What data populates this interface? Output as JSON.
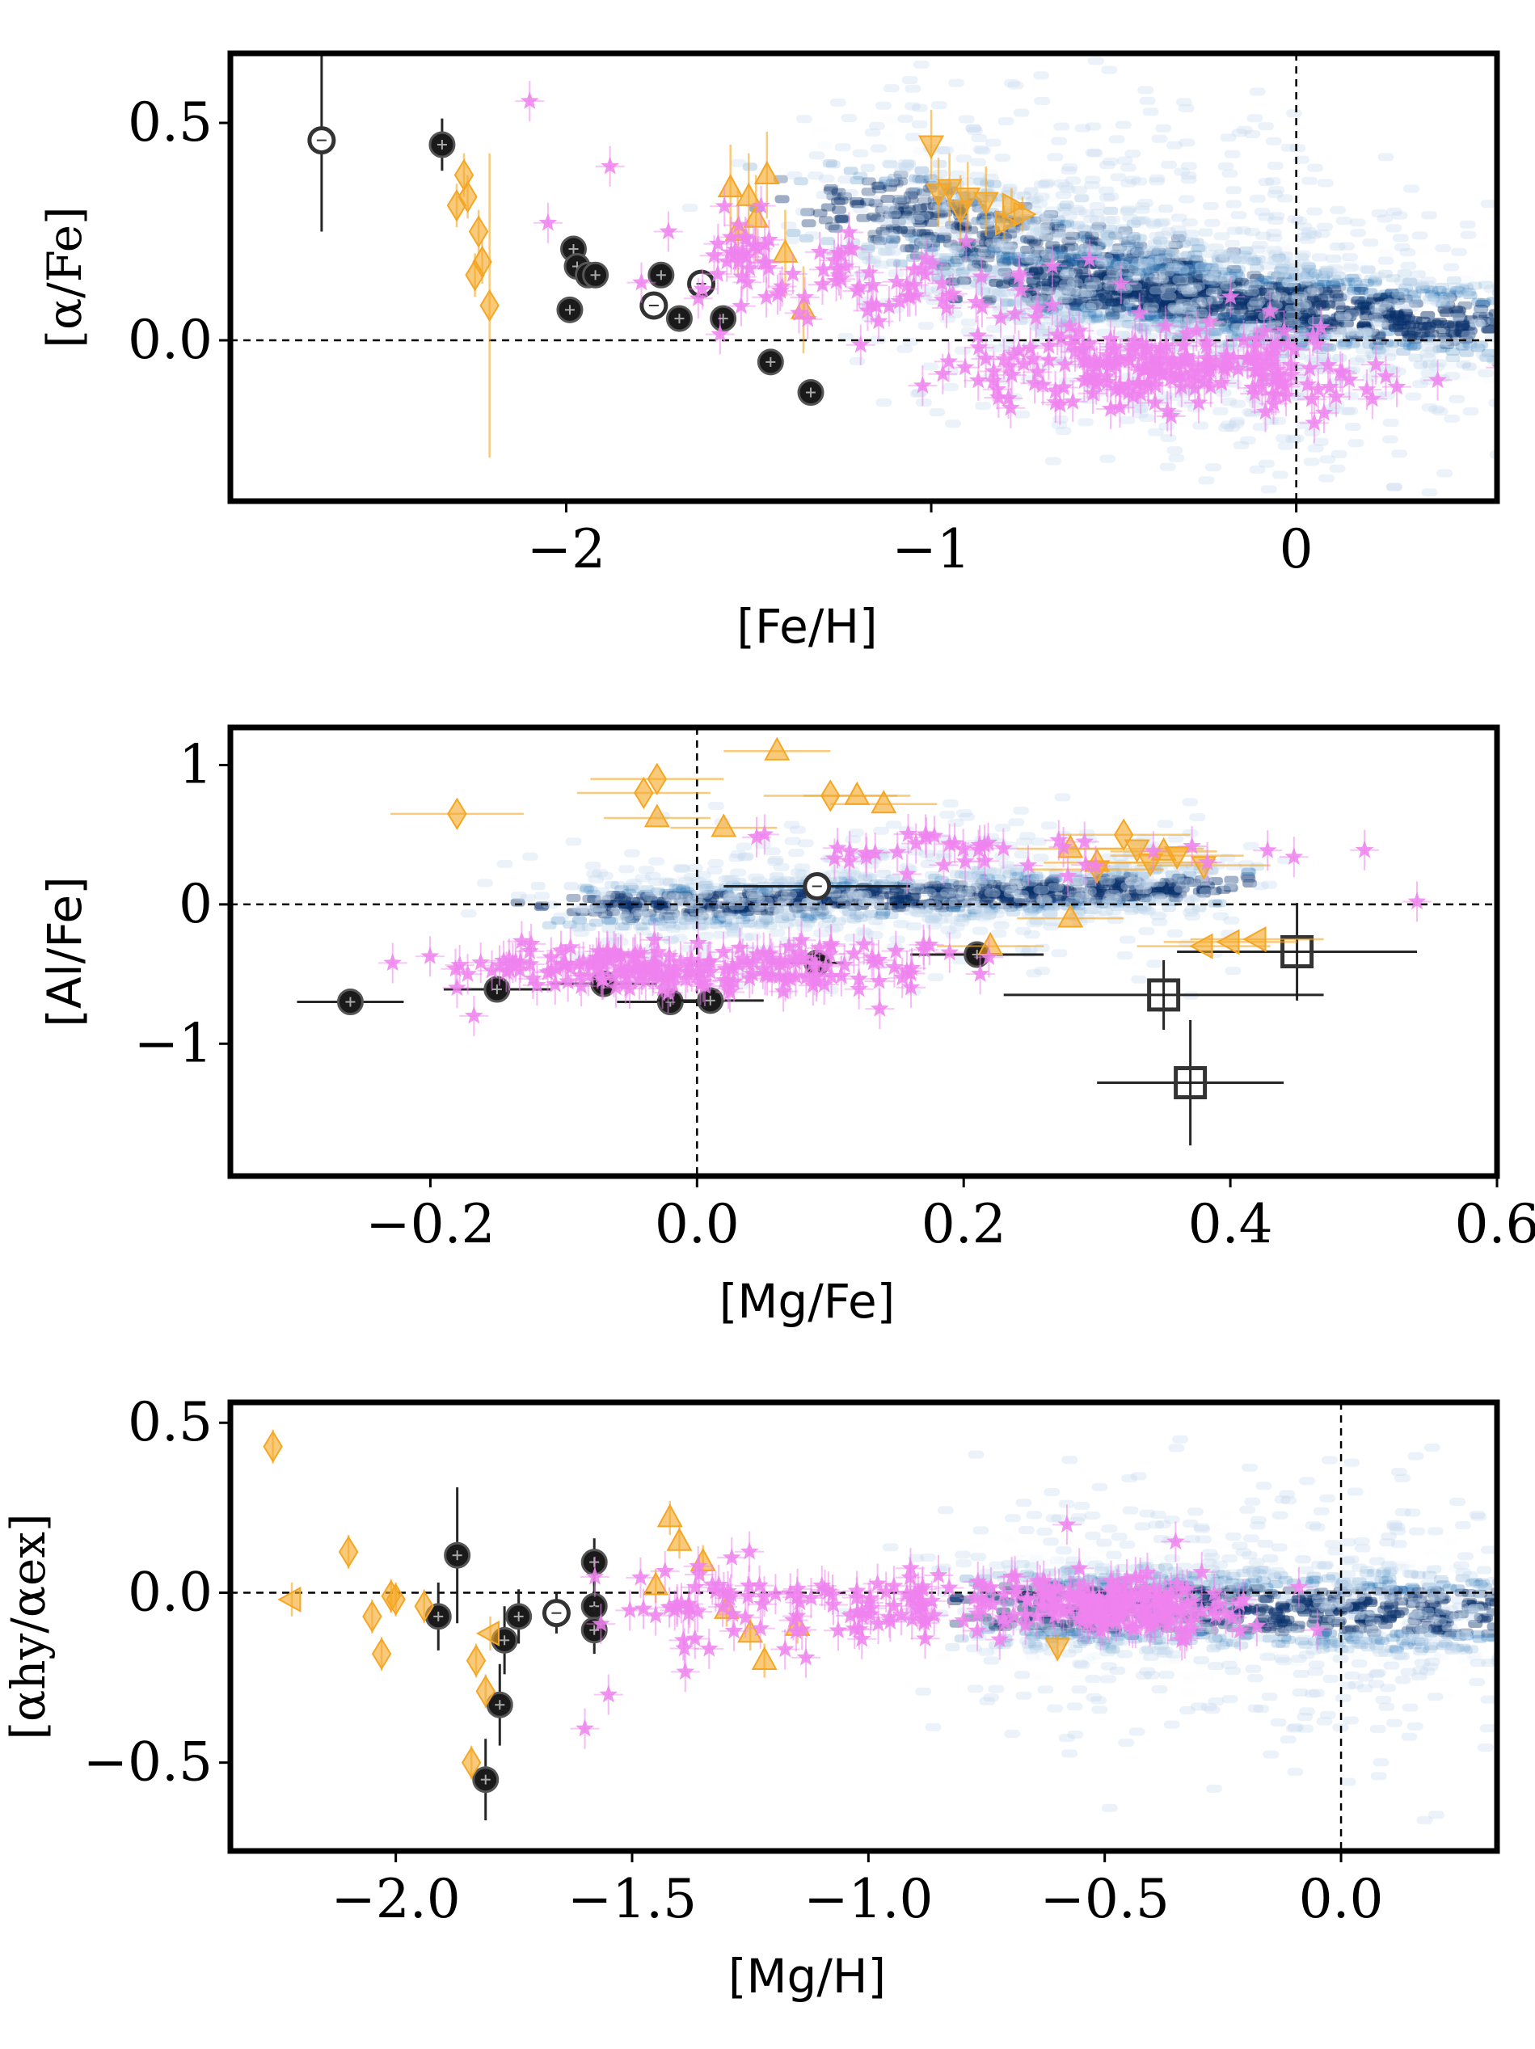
{
  "colors": {
    "black_points": "#1a1a1a",
    "orange_points": "#f5a623",
    "violet_points": "#ee82ee",
    "density_dark": "#08306b",
    "density_mid": "#2171b5",
    "density_light": "#c6dbef"
  },
  "chart_data": [
    {
      "type": "scatter",
      "title": "",
      "xlabel": "[Fe/H]",
      "ylabel": "[α/Fe]",
      "xlim": [
        -2.92,
        0.55
      ],
      "ylim": [
        -0.37,
        0.66
      ],
      "xticks": [
        -2,
        -1,
        0
      ],
      "xtick_labels": [
        "−2",
        "−1",
        "0"
      ],
      "yticks": [
        0.0,
        0.5
      ],
      "ytick_labels": [
        "0.0",
        "0.5"
      ],
      "ref_lines": {
        "h": 0.0,
        "v": 0.0
      },
      "density_bands": [
        {
          "name": "thick disc",
          "x0": -1.2,
          "x1": 0.05,
          "y0": 0.32,
          "y1": 0.05,
          "w": 0.09,
          "strength": 0.8
        },
        {
          "name": "thin disc",
          "x0": -0.75,
          "x1": 0.52,
          "y0": 0.14,
          "y1": 0.03,
          "w": 0.07,
          "strength": 1.0
        }
      ],
      "series": [
        {
          "name": "black filled",
          "marker": "circle",
          "x": [
            -2.34,
            -1.98,
            -1.97,
            -1.94,
            -1.92,
            -1.99,
            -1.74,
            -1.69,
            -1.57,
            -1.44,
            -1.33
          ],
          "y": [
            0.45,
            0.21,
            0.17,
            0.15,
            0.15,
            0.07,
            0.15,
            0.05,
            0.05,
            -0.05,
            -0.12
          ],
          "yerr": [
            0.06,
            0.03,
            0.03,
            0.03,
            0.03,
            0.03,
            0.03,
            0.03,
            0.03,
            0.03,
            0.03
          ]
        },
        {
          "name": "black open",
          "marker": "open-circle",
          "x": [
            -2.67,
            -1.76,
            -1.63
          ],
          "y": [
            0.46,
            0.08,
            0.13
          ],
          "yerr": [
            0.21,
            0.02,
            0.02
          ]
        },
        {
          "name": "orange diamonds",
          "marker": "diamond",
          "x": [
            -2.28,
            -2.27,
            -2.3,
            -2.24,
            -2.23,
            -2.25,
            -2.21
          ],
          "y": [
            0.38,
            0.33,
            0.31,
            0.25,
            0.18,
            0.15,
            0.08
          ],
          "yerr": [
            0.05,
            0.05,
            0.05,
            0.05,
            0.05,
            0.05,
            0.35
          ]
        },
        {
          "name": "orange triangles up",
          "marker": "triangle-up",
          "x": [
            -1.55,
            -1.5,
            -1.48,
            -1.45,
            -1.53,
            -1.4,
            -1.35
          ],
          "y": [
            0.35,
            0.33,
            0.28,
            0.38,
            0.25,
            0.2,
            0.07
          ],
          "yerr": [
            0.1,
            0.1,
            0.1,
            0.1,
            0.1,
            0.1,
            0.1
          ]
        },
        {
          "name": "orange triangles down",
          "marker": "triangle-down",
          "x": [
            -1.0,
            -0.95,
            -0.9,
            -0.92,
            -0.85,
            -0.98
          ],
          "y": [
            0.45,
            0.35,
            0.33,
            0.3,
            0.32,
            0.34
          ],
          "yerr": [
            0.08,
            0.08,
            0.08,
            0.08,
            0.08,
            0.08
          ]
        },
        {
          "name": "orange triangles right",
          "marker": "triangle-right",
          "x": [
            -0.78,
            -0.75,
            -0.8
          ],
          "y": [
            0.31,
            0.29,
            0.27
          ],
          "yerr": [
            0.04,
            0.04,
            0.04
          ]
        },
        {
          "name": "violet stars",
          "marker": "star",
          "cloud": true,
          "clusters": [
            {
              "cx": -0.35,
              "cy": -0.06,
              "sx": 0.28,
              "sy": 0.05,
              "n": 220
            },
            {
              "cx": -1.15,
              "cy": 0.13,
              "sx": 0.22,
              "sy": 0.05,
              "n": 70
            },
            {
              "cx": -1.55,
              "cy": 0.2,
              "sx": 0.06,
              "sy": 0.05,
              "n": 25
            }
          ],
          "x": [
            -2.1,
            -1.88,
            -2.05,
            -1.72,
            -0.48,
            -0.18
          ],
          "y": [
            0.55,
            0.4,
            0.27,
            0.25,
            0.13,
            0.1
          ]
        }
      ]
    },
    {
      "type": "scatter",
      "title": "",
      "xlabel": "[Mg/Fe]",
      "ylabel": "[Al/Fe]",
      "xlim": [
        -0.35,
        0.6
      ],
      "ylim": [
        -1.95,
        1.27
      ],
      "xticks": [
        -0.2,
        0.0,
        0.2,
        0.4,
        0.6
      ],
      "xtick_labels": [
        "−0.2",
        "0.0",
        "0.2",
        "0.4",
        "0.6"
      ],
      "yticks": [
        -1,
        0,
        1
      ],
      "ytick_labels": [
        "−1",
        "0",
        "1"
      ],
      "ref_lines": {
        "h": 0.0,
        "v": 0.0
      },
      "density_bands": [
        {
          "name": "disc",
          "x0": -0.08,
          "x1": 0.38,
          "y0": -0.03,
          "y1": 0.13,
          "w": 0.12,
          "strength": 0.9
        }
      ],
      "series": [
        {
          "name": "black filled",
          "marker": "circle",
          "x": [
            -0.26,
            -0.15,
            -0.07,
            -0.02,
            0.01,
            0.09,
            0.21
          ],
          "y": [
            -0.7,
            -0.61,
            -0.57,
            -0.7,
            -0.69,
            -0.42,
            -0.36
          ],
          "xerr": [
            0.04,
            0.04,
            0.04,
            0.04,
            0.04,
            0.02,
            0.05
          ]
        },
        {
          "name": "black open",
          "marker": "open-circle",
          "x": [
            0.09
          ],
          "y": [
            0.13
          ],
          "xerr": [
            0.07
          ]
        },
        {
          "name": "black squares",
          "marker": "open-square",
          "x": [
            0.35,
            0.37,
            0.45
          ],
          "y": [
            -0.65,
            -1.28,
            -0.34
          ],
          "xerr": [
            0.12,
            0.07,
            0.09
          ],
          "yerr": [
            0.25,
            0.45,
            0.35
          ]
        },
        {
          "name": "orange diamonds",
          "marker": "diamond",
          "x": [
            -0.18,
            -0.04,
            -0.03,
            0.1,
            0.32
          ],
          "y": [
            0.65,
            0.8,
            0.9,
            0.78,
            0.5
          ],
          "xerr": [
            0.05,
            0.05,
            0.05,
            0.05,
            0.05
          ]
        },
        {
          "name": "orange triangles up",
          "marker": "triangle-up",
          "x": [
            0.06,
            0.02,
            -0.03,
            0.12,
            0.14,
            0.28,
            0.3,
            0.35,
            0.22,
            0.28
          ],
          "y": [
            1.1,
            0.55,
            0.62,
            0.78,
            0.72,
            0.4,
            0.3,
            0.38,
            -0.3,
            -0.1
          ],
          "xerr": [
            0.04,
            0.04,
            0.04,
            0.04,
            0.04,
            0.04,
            0.04,
            0.04,
            0.04,
            0.04
          ]
        },
        {
          "name": "orange triangles down",
          "marker": "triangle-down",
          "x": [
            0.33,
            0.36,
            0.38,
            0.34,
            0.3
          ],
          "y": [
            0.4,
            0.35,
            0.28,
            0.3,
            0.25
          ],
          "xerr": [
            0.05,
            0.05,
            0.05,
            0.05,
            0.05
          ]
        },
        {
          "name": "orange triangles left",
          "marker": "triangle-left",
          "x": [
            0.42,
            0.4,
            0.38
          ],
          "y": [
            -0.25,
            -0.27,
            -0.3
          ],
          "xerr": [
            0.05,
            0.05,
            0.05
          ]
        },
        {
          "name": "violet stars",
          "marker": "star",
          "cloud": true,
          "clusters": [
            {
              "cx": 0.0,
              "cy": -0.45,
              "sx": 0.09,
              "sy": 0.09,
              "n": 200
            },
            {
              "cx": 0.2,
              "cy": 0.4,
              "sx": 0.08,
              "sy": 0.08,
              "n": 40
            }
          ],
          "x": [
            0.54,
            -0.18,
            -0.12
          ],
          "y": [
            0.02,
            -0.6,
            -0.58
          ]
        }
      ]
    },
    {
      "type": "scatter",
      "title": "",
      "xlabel": "[Mg/H]",
      "ylabel": "[αhy/αex]",
      "xlim": [
        -2.35,
        0.33
      ],
      "ylim": [
        -0.76,
        0.56
      ],
      "xticks": [
        -2.0,
        -1.5,
        -1.0,
        -0.5,
        0.0
      ],
      "xtick_labels": [
        "−2.0",
        "−1.5",
        "−1.0",
        "−0.5",
        "0.0"
      ],
      "yticks": [
        -0.5,
        0.0,
        0.5
      ],
      "ytick_labels": [
        "−0.5",
        "0.0",
        "0.5"
      ],
      "ref_lines": {
        "h": 0.0,
        "v": 0.0
      },
      "density_bands": [
        {
          "name": "disc",
          "x0": -0.75,
          "x1": 0.33,
          "y0": -0.04,
          "y1": -0.06,
          "w": 0.09,
          "strength": 0.95
        }
      ],
      "series": [
        {
          "name": "black filled",
          "marker": "circle",
          "x": [
            -1.91,
            -1.87,
            -1.77,
            -1.74,
            -1.78,
            -1.81,
            -1.58,
            -1.58,
            -1.58
          ],
          "y": [
            -0.07,
            0.11,
            -0.14,
            -0.07,
            -0.33,
            -0.55,
            0.09,
            -0.04,
            -0.11
          ],
          "yerr": [
            0.1,
            0.2,
            0.1,
            0.08,
            0.12,
            0.12,
            0.07,
            0.07,
            0.07
          ]
        },
        {
          "name": "black open",
          "marker": "open-circle",
          "x": [
            -1.66
          ],
          "y": [
            -0.06
          ],
          "yerr": [
            0.06
          ]
        },
        {
          "name": "orange diamonds",
          "marker": "diamond",
          "x": [
            -2.26,
            -2.1,
            -2.05,
            -2.01,
            -2.03,
            -1.81,
            -1.83,
            -1.84,
            -2.0,
            -1.94
          ],
          "y": [
            0.43,
            0.12,
            -0.07,
            -0.01,
            -0.18,
            -0.29,
            -0.2,
            -0.5,
            -0.02,
            -0.04
          ],
          "yerr": [
            0.05,
            0.05,
            0.05,
            0.05,
            0.05,
            0.05,
            0.05,
            0.05,
            0.05,
            0.05
          ]
        },
        {
          "name": "orange triangles",
          "marker": "triangle-up",
          "x": [
            -1.42,
            -1.4,
            -1.35,
            -1.25,
            -1.22,
            -1.15,
            -1.45,
            -1.3
          ],
          "y": [
            0.22,
            0.15,
            0.09,
            -0.12,
            -0.2,
            -0.1,
            0.02,
            -0.05
          ],
          "yerr": [
            0.05,
            0.05,
            0.05,
            0.05,
            0.05,
            0.05,
            0.05,
            0.05
          ]
        },
        {
          "name": "orange triangles down",
          "marker": "triangle-down",
          "x": [
            -0.6
          ],
          "y": [
            -0.16
          ],
          "yerr": [
            0.04
          ]
        },
        {
          "name": "orange triangles left",
          "marker": "triangle-left",
          "x": [
            -1.8,
            -2.22
          ],
          "y": [
            -0.12,
            -0.02
          ],
          "yerr": [
            0.05,
            0.05
          ]
        },
        {
          "name": "violet stars",
          "marker": "star",
          "cloud": true,
          "clusters": [
            {
              "cx": -0.45,
              "cy": -0.04,
              "sx": 0.12,
              "sy": 0.04,
              "n": 160
            },
            {
              "cx": -0.9,
              "cy": -0.03,
              "sx": 0.22,
              "sy": 0.05,
              "n": 90
            },
            {
              "cx": -1.35,
              "cy": -0.05,
              "sx": 0.12,
              "sy": 0.08,
              "n": 40
            }
          ],
          "x": [
            -0.58,
            -0.35,
            -0.05,
            -1.6,
            -1.55
          ],
          "y": [
            0.2,
            0.15,
            -0.11,
            -0.4,
            -0.3
          ]
        }
      ]
    }
  ]
}
